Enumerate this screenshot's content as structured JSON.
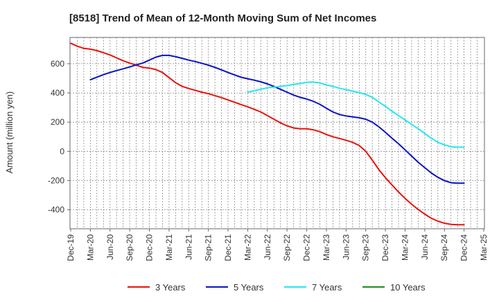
{
  "chart_data": {
    "type": "line",
    "title": "[8518]  Trend of Mean of 12-Month Moving Sum of Net Incomes",
    "xlabel": "",
    "ylabel": "Amount (million yen)",
    "ylim": [
      -530,
      780
    ],
    "y_ticks": [
      -400,
      -200,
      0,
      200,
      400,
      600
    ],
    "x_tick_labels": [
      "Dec-19",
      "Mar-20",
      "Jun-20",
      "Sep-20",
      "Dec-20",
      "Mar-21",
      "Jun-21",
      "Sep-21",
      "Dec-21",
      "Mar-22",
      "Jun-22",
      "Sep-22",
      "Dec-22",
      "Mar-23",
      "Jun-23",
      "Sep-23",
      "Dec-23",
      "Mar-24",
      "Jun-24",
      "Sep-24",
      "Dec-24",
      "Mar-25"
    ],
    "x_unit": "months since Dec-19",
    "grid": true,
    "legend_position": "bottom",
    "series": [
      {
        "name": "3 Years",
        "color": "#e8120c",
        "x": [
          0,
          1,
          2,
          3,
          4,
          5,
          6,
          7,
          8,
          9,
          10,
          11,
          12,
          13,
          14,
          15,
          16,
          17,
          18,
          19,
          20,
          21,
          22,
          23,
          24,
          25,
          26,
          27,
          28,
          29,
          30,
          31,
          32,
          33,
          34,
          35,
          36,
          37,
          38,
          39,
          40,
          41,
          42,
          43,
          44,
          45,
          46,
          47,
          48,
          49,
          50,
          51,
          52,
          53,
          54,
          55,
          56,
          57,
          58,
          59,
          60
        ],
        "values": [
          740,
          720,
          705,
          700,
          690,
          675,
          660,
          640,
          620,
          605,
          590,
          575,
          570,
          560,
          540,
          505,
          470,
          445,
          430,
          418,
          405,
          395,
          382,
          368,
          352,
          336,
          320,
          305,
          288,
          270,
          245,
          220,
          195,
          175,
          160,
          155,
          155,
          148,
          135,
          115,
          100,
          88,
          76,
          62,
          40,
          0,
          -60,
          -125,
          -180,
          -230,
          -278,
          -322,
          -362,
          -398,
          -430,
          -458,
          -478,
          -492,
          -500,
          -503,
          -503
        ]
      },
      {
        "name": "5 Years",
        "color": "#0a12c4",
        "x": [
          3,
          4,
          5,
          6,
          7,
          8,
          9,
          10,
          11,
          12,
          13,
          14,
          15,
          16,
          17,
          18,
          19,
          20,
          21,
          22,
          23,
          24,
          25,
          26,
          27,
          28,
          29,
          30,
          31,
          32,
          33,
          34,
          35,
          36,
          37,
          38,
          39,
          40,
          41,
          42,
          43,
          44,
          45,
          46,
          47,
          48,
          49,
          50,
          51,
          52,
          53,
          54,
          55,
          56,
          57,
          58,
          59,
          60
        ],
        "values": [
          490,
          508,
          525,
          540,
          553,
          565,
          578,
          592,
          605,
          625,
          645,
          657,
          657,
          648,
          637,
          625,
          615,
          603,
          590,
          575,
          558,
          540,
          523,
          507,
          497,
          487,
          476,
          462,
          444,
          425,
          405,
          385,
          370,
          358,
          343,
          322,
          295,
          270,
          252,
          242,
          236,
          230,
          220,
          200,
          168,
          130,
          90,
          52,
          10,
          -32,
          -75,
          -112,
          -148,
          -178,
          -200,
          -215,
          -218,
          -218
        ]
      },
      {
        "name": "7 Years",
        "color": "#22e8f0",
        "x": [
          27,
          28,
          29,
          30,
          31,
          32,
          33,
          34,
          35,
          36,
          37,
          38,
          39,
          40,
          41,
          42,
          43,
          44,
          45,
          46,
          47,
          48,
          49,
          50,
          51,
          52,
          53,
          54,
          55,
          56,
          57,
          58,
          59,
          60
        ],
        "values": [
          405,
          415,
          425,
          435,
          440,
          445,
          450,
          458,
          465,
          473,
          475,
          468,
          455,
          445,
          432,
          422,
          412,
          402,
          390,
          370,
          338,
          308,
          275,
          245,
          215,
          185,
          155,
          122,
          90,
          62,
          45,
          32,
          28,
          28
        ]
      },
      {
        "name": "10 Years",
        "color": "#1f8a1f",
        "x": [],
        "values": []
      }
    ]
  }
}
